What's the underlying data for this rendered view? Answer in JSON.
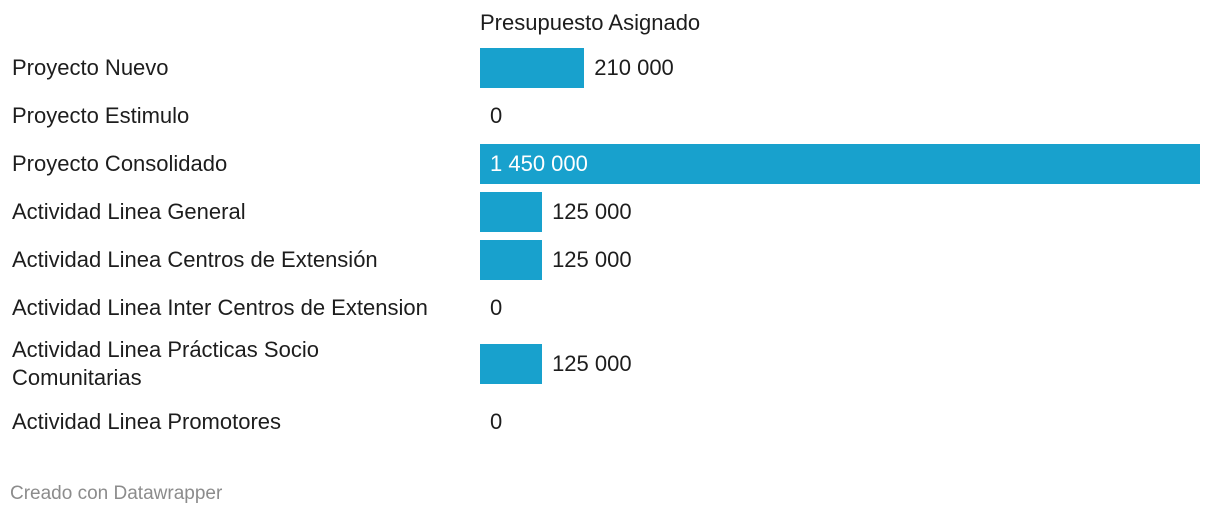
{
  "chart_data": {
    "type": "bar",
    "orientation": "horizontal",
    "series": [
      {
        "name": "Presupuesto Asignado",
        "values": [
          210000,
          0,
          1450000,
          125000,
          125000,
          0,
          125000,
          0
        ]
      }
    ],
    "categories": [
      "Proyecto Nuevo",
      "Proyecto Estimulo",
      "Proyecto Consolidado",
      "Actividad Linea General",
      "Actividad Linea Centros de Extensión",
      "Actividad Linea Inter Centros de Extension",
      "Actividad Linea Prácticas Socio Comunitarias",
      "Actividad Linea Promotores"
    ],
    "value_labels": [
      "210 000",
      "0",
      "1 450 000",
      "125 000",
      "125 000",
      "0",
      "125 000",
      "0"
    ],
    "xlim": [
      0,
      1450000
    ],
    "grid": false,
    "bar_color": "#18a1cd"
  },
  "header": {
    "column_title": "Presupuesto Asignado"
  },
  "footer": {
    "credit": "Creado con Datawrapper"
  }
}
